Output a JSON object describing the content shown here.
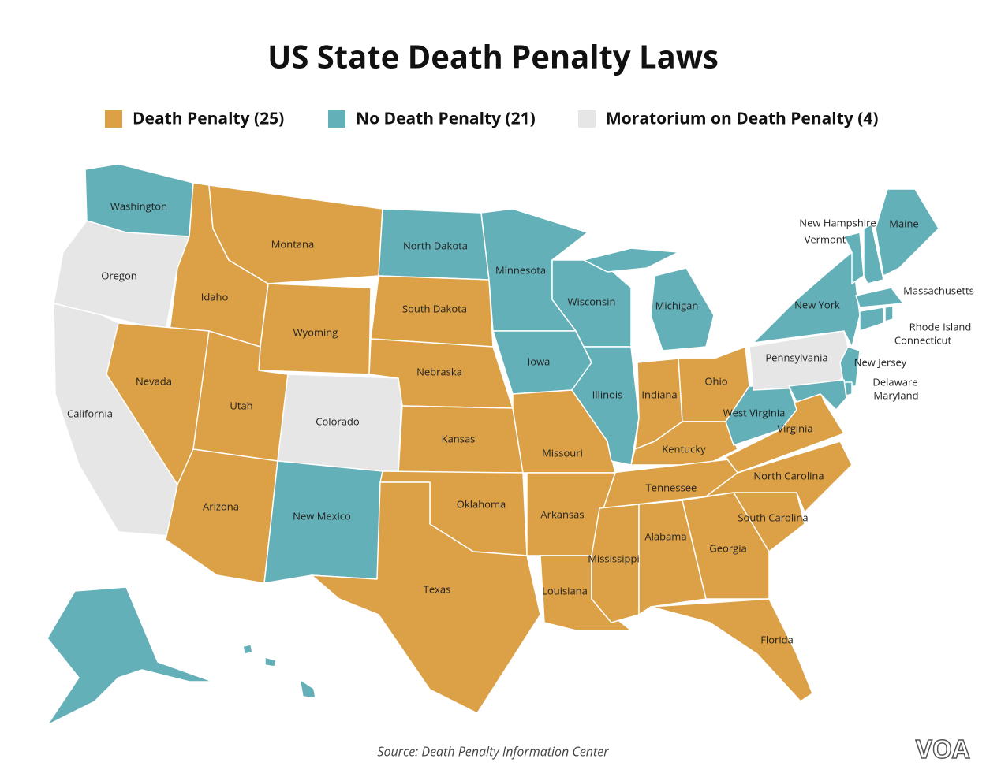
{
  "title": "US State Death Penalty Laws",
  "legend": [
    {
      "label": "Death Penalty (25)",
      "color": "#dca146"
    },
    {
      "label": "No Death Penalty (21)",
      "color": "#63b0b8"
    },
    {
      "label": "Moratorium on Death Penalty (4)",
      "color": "#e6e6e6"
    }
  ],
  "states": [
    {
      "name": "Washington",
      "status": 1
    },
    {
      "name": "Oregon",
      "status": 2
    },
    {
      "name": "California",
      "status": 2
    },
    {
      "name": "Idaho",
      "status": 0
    },
    {
      "name": "Montana",
      "status": 0
    },
    {
      "name": "Wyoming",
      "status": 0
    },
    {
      "name": "Nevada",
      "status": 0
    },
    {
      "name": "Utah",
      "status": 0
    },
    {
      "name": "Arizona",
      "status": 0
    },
    {
      "name": "Colorado",
      "status": 2
    },
    {
      "name": "New Mexico",
      "status": 1
    },
    {
      "name": "North Dakota",
      "status": 1
    },
    {
      "name": "South Dakota",
      "status": 0
    },
    {
      "name": "Nebraska",
      "status": 0
    },
    {
      "name": "Kansas",
      "status": 0
    },
    {
      "name": "Oklahoma",
      "status": 0
    },
    {
      "name": "Texas",
      "status": 0
    },
    {
      "name": "Minnesota",
      "status": 1
    },
    {
      "name": "Iowa",
      "status": 1
    },
    {
      "name": "Missouri",
      "status": 0
    },
    {
      "name": "Wisconsin",
      "status": 1
    },
    {
      "name": "Illinois",
      "status": 1
    },
    {
      "name": "Michigan",
      "status": 1
    },
    {
      "name": "Indiana",
      "status": 0
    },
    {
      "name": "Ohio",
      "status": 0
    },
    {
      "name": "Kentucky",
      "status": 0
    },
    {
      "name": "Tennessee",
      "status": 0
    },
    {
      "name": "Arkansas",
      "status": 0
    },
    {
      "name": "Louisiana",
      "status": 0
    },
    {
      "name": "Mississippi",
      "status": 0
    },
    {
      "name": "Alabama",
      "status": 0
    },
    {
      "name": "Georgia",
      "status": 0
    },
    {
      "name": "Florida",
      "status": 0
    },
    {
      "name": "South Carolina",
      "status": 0
    },
    {
      "name": "North Carolina",
      "status": 0
    },
    {
      "name": "Virginia",
      "status": 0
    },
    {
      "name": "West Virginia",
      "status": 1
    },
    {
      "name": "Pennsylvania",
      "status": 2
    },
    {
      "name": "New York",
      "status": 1
    },
    {
      "name": "Vermont",
      "status": 1
    },
    {
      "name": "New Hampshire",
      "status": 1
    },
    {
      "name": "Maine",
      "status": 1
    },
    {
      "name": "Massachusetts",
      "status": 1
    },
    {
      "name": "Connecticut",
      "status": 1
    },
    {
      "name": "Rhode Island",
      "status": 1
    },
    {
      "name": "New Jersey",
      "status": 1
    },
    {
      "name": "Delaware",
      "status": 1
    },
    {
      "name": "Maryland",
      "status": 1
    },
    {
      "name": "Alaska",
      "status": 1
    },
    {
      "name": "Hawaii",
      "status": 1
    }
  ],
  "source": "Source: Death Penalty Information Center",
  "logo": "VOA"
}
